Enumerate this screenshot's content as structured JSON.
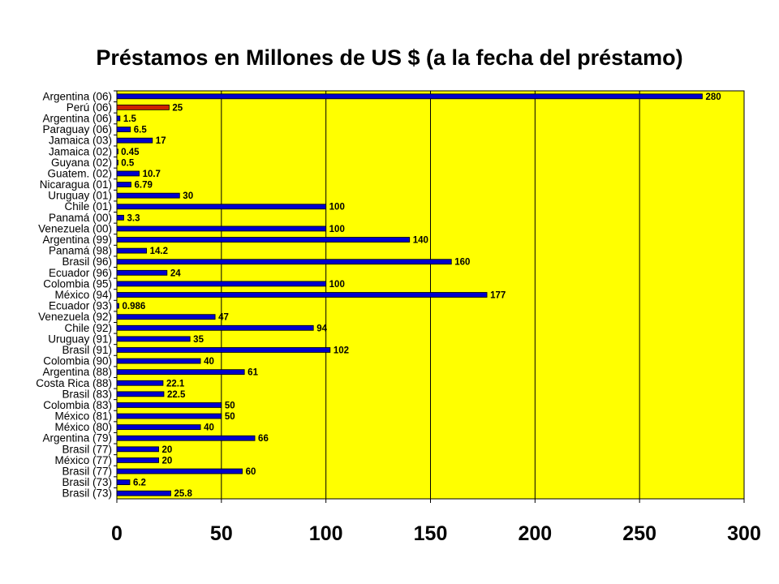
{
  "chart_data": {
    "type": "bar",
    "orientation": "horizontal",
    "title": "Préstamos en Millones de US $ (a la fecha del préstamo)",
    "xlabel": "",
    "ylabel": "",
    "xlim": [
      0,
      300
    ],
    "xticks": [
      "0",
      "50",
      "100",
      "150",
      "200",
      "250",
      "300"
    ],
    "grid": "vertical",
    "plot_background": "#ffff00",
    "bar_color": "#0000cc",
    "highlight_color": "#cc2200",
    "highlight_index": 1,
    "categories": [
      "Argentina (06)",
      "Perú (06)",
      "Argentina (06)",
      "Paraguay (06)",
      "Jamaica (03)",
      "Jamaica (02)",
      "Guyana (02)",
      "Guatem. (02)",
      "Nicaragua (01)",
      "Uruguay (01)",
      "Chile (01)",
      "Panamá (00)",
      "Venezuela (00)",
      "Argentina (99)",
      "Panamá (98)",
      "Brasil (96)",
      "Ecuador (96)",
      "Colombia (95)",
      "México (94)",
      "Ecuador (93)",
      "Venezuela (92)",
      "Chile (92)",
      "Uruguay (91)",
      "Brasil (91)",
      "Colombia (90)",
      "Argentina (88)",
      "Costa Rica (88)",
      "Brasil (83)",
      "Colombia (83)",
      "México (81)",
      "México (80)",
      "Argentina (79)",
      "Brasil (77)",
      "México (77)",
      "Brasil (77)",
      "Brasil (73)",
      "Brasil (73)"
    ],
    "values": [
      280,
      25,
      1.5,
      6.5,
      17,
      0.45,
      0.5,
      10.7,
      6.79,
      30,
      100,
      3.3,
      100,
      140,
      14.2,
      160,
      24,
      100,
      177,
      0.986,
      47,
      94,
      35,
      102,
      40,
      61,
      22.1,
      22.5,
      50,
      50,
      40,
      66,
      20,
      20,
      60,
      6.2,
      25.8
    ],
    "value_labels": [
      "280",
      "25",
      "1.5",
      "6.5",
      "17",
      "0.45",
      "0.5",
      "10.7",
      "6.79",
      "30",
      "100",
      "3.3",
      "100",
      "140",
      "14.2",
      "160",
      "24",
      "100",
      "177",
      "0.986",
      "47",
      "94",
      "35",
      "102",
      "40",
      "61",
      "22.1",
      "22.5",
      "50",
      "50",
      "40",
      "66",
      "20",
      "20",
      "60",
      "6.2",
      "25.8"
    ]
  }
}
